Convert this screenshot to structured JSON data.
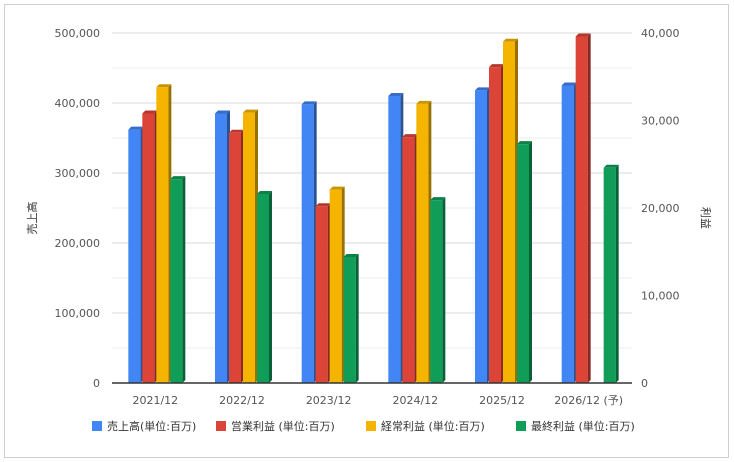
{
  "chart_data": {
    "type": "bar",
    "categories": [
      "2021/12",
      "2022/12",
      "2023/12",
      "2024/12",
      "2025/12",
      "2026/12 (予)"
    ],
    "left_axis": {
      "label": "売上高",
      "ylim": [
        0,
        500000
      ],
      "ticks": [
        "0",
        "100,000",
        "200,000",
        "300,000",
        "400,000",
        "500,000"
      ]
    },
    "right_axis": {
      "label": "利益",
      "ylim": [
        0,
        40000
      ],
      "ticks": [
        "0",
        "10,000",
        "20,000",
        "30,000",
        "40,000"
      ]
    },
    "grid": true,
    "legend_position": "bottom",
    "series": [
      {
        "name": "売上高(単位:百万)",
        "axis": "left",
        "color": "#4285f4",
        "values": [
          362000,
          385000,
          398000,
          410000,
          418000,
          425000
        ]
      },
      {
        "name": "営業利益 (単位:百万)",
        "axis": "right",
        "color": "#db4437",
        "values": [
          30800,
          28600,
          20200,
          28100,
          36100,
          39600
        ]
      },
      {
        "name": "経常利益 (単位:百万)",
        "axis": "right",
        "color": "#f4b400",
        "values": [
          33800,
          30900,
          22100,
          31900,
          39000,
          null
        ]
      },
      {
        "name": "最終利益 (単位:百万)",
        "axis": "right",
        "color": "#0f9d58",
        "values": [
          23300,
          21600,
          14400,
          20900,
          27300,
          24600
        ]
      }
    ]
  }
}
